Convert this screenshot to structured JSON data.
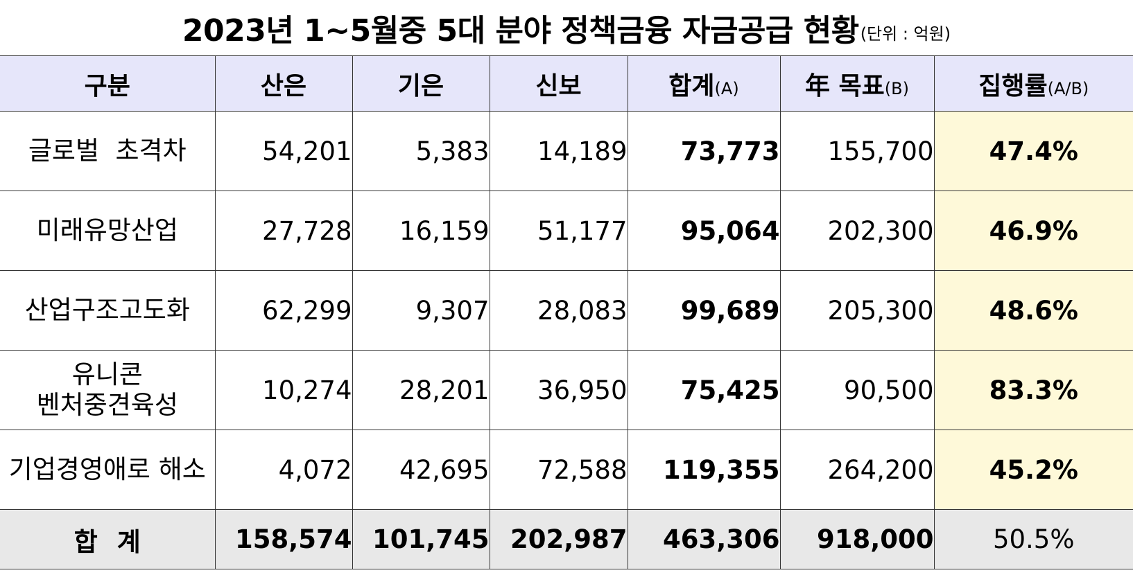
{
  "title": {
    "main": "2023년 1~5월중 5대 분야 정책금융 자금공급 현황",
    "unit": "(단위 : 억원)"
  },
  "headers": {
    "category": "구분",
    "kdb": "산은",
    "ibk": "기은",
    "kodit": "신보",
    "total": "합계",
    "total_sub": "(A)",
    "target": "年 목표",
    "target_sub": "(B)",
    "rate": "집행률",
    "rate_sub": "(A/B)"
  },
  "rows": [
    {
      "category": "글로벌  초격차",
      "kdb": "54,201",
      "ibk": "5,383",
      "kodit": "14,189",
      "total": "73,773",
      "target": "155,700",
      "rate": "47.4%"
    },
    {
      "category": "미래유망산업",
      "kdb": "27,728",
      "ibk": "16,159",
      "kodit": "51,177",
      "total": "95,064",
      "target": "202,300",
      "rate": "46.9%"
    },
    {
      "category": "산업구조고도화",
      "kdb": "62,299",
      "ibk": "9,307",
      "kodit": "28,083",
      "total": "99,689",
      "target": "205,300",
      "rate": "48.6%"
    },
    {
      "category": "유니콘\n벤처중견육성",
      "kdb": "10,274",
      "ibk": "28,201",
      "kodit": "36,950",
      "total": "75,425",
      "target": "90,500",
      "rate": "83.3%"
    },
    {
      "category": "기업경영애로 해소",
      "kdb": "4,072",
      "ibk": "42,695",
      "kodit": "72,588",
      "total": "119,355",
      "target": "264,200",
      "rate": "45.2%"
    }
  ],
  "totals": {
    "category": "합계",
    "kdb": "158,574",
    "ibk": "101,745",
    "kodit": "202,987",
    "total": "463,306",
    "target": "918,000",
    "rate": "50.5%"
  }
}
